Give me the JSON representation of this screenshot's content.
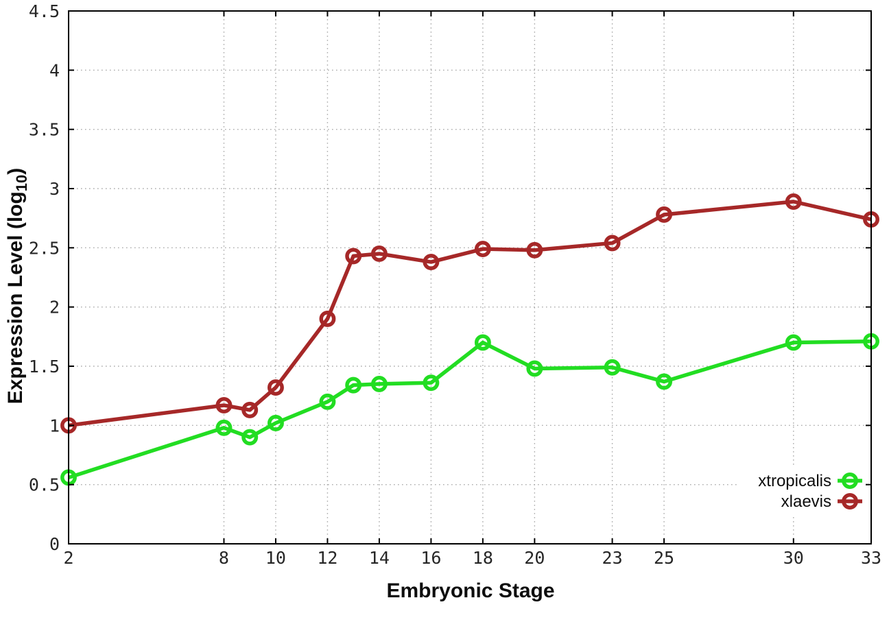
{
  "figure": {
    "background": "#ffffff",
    "border_color": "#000000",
    "grid_color": "#ababab",
    "tick_label_color": "#262626"
  },
  "chart_data": {
    "type": "line",
    "title": "",
    "xlabel": "Embryonic Stage",
    "ylabel": "Expression Level (log10)",
    "ylabel_parts": {
      "prefix": "Expression Level (log",
      "subscript": "10",
      "suffix": ")"
    },
    "x": [
      2,
      8,
      9,
      10,
      12,
      13,
      14,
      16,
      18,
      20,
      23,
      25,
      30,
      33
    ],
    "x_ticks": [
      2,
      8,
      10,
      12,
      14,
      16,
      18,
      20,
      23,
      25,
      30,
      33
    ],
    "y_ticks": [
      0,
      0.5,
      1,
      1.5,
      2,
      2.5,
      3,
      3.5,
      4,
      4.5
    ],
    "y_tick_labels": [
      "0",
      "0.5",
      "1",
      "1.5",
      "2",
      "2.5",
      "3",
      "3.5",
      "4",
      "4.5"
    ],
    "xlim": [
      2,
      33
    ],
    "ylim": [
      0,
      4.5
    ],
    "grid": true,
    "legend_position": "bottom-right",
    "series": [
      {
        "name": "xtropicalis",
        "color": "#22dd22",
        "values": [
          0.56,
          0.98,
          0.9,
          1.02,
          1.2,
          1.34,
          1.35,
          1.36,
          1.7,
          1.48,
          1.49,
          1.37,
          1.7,
          1.71
        ]
      },
      {
        "name": "xlaevis",
        "color": "#a62828",
        "values": [
          1.0,
          1.17,
          1.13,
          1.32,
          1.9,
          2.43,
          2.45,
          2.38,
          2.49,
          2.48,
          2.54,
          2.78,
          2.89,
          2.74
        ]
      }
    ]
  }
}
